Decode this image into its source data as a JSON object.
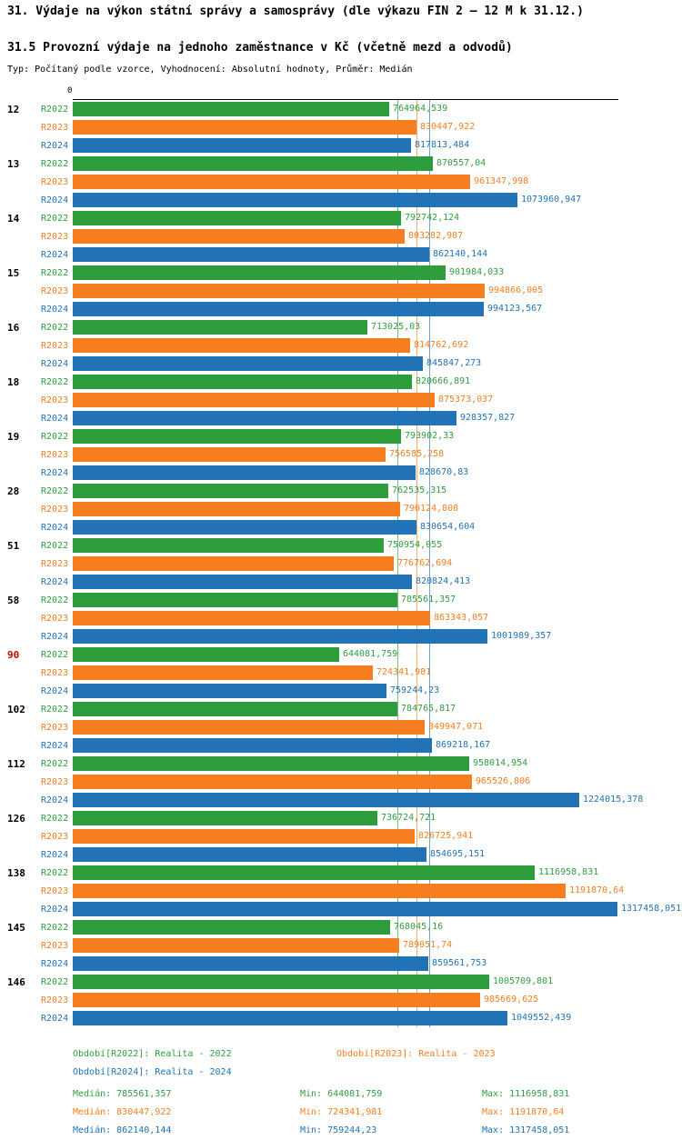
{
  "header": {
    "title": "31. Výdaje na výkon státní správy a samosprávy (dle výkazu FIN 2 – 12 M k 31.12.)",
    "subtitle": "31.5 Provozní výdaje na jednoho zaměstnance v Kč (včetně mezd a odvodů)",
    "meta": "Typ: Počítaný podle vzorce, Vyhodnocení: Absolutní hodnoty, Průměr: Medián"
  },
  "chart_data": {
    "type": "bar",
    "orientation": "horizontal",
    "title": "31.5 Provozní výdaje na jednoho zaměstnance v Kč (včetně mezd a odvodů)",
    "axis_zero_label": "0",
    "xlim": [
      0,
      1400000
    ],
    "grid": false,
    "legend_position": "bottom",
    "series": [
      {
        "name": "R2022",
        "label": "Realita - 2022",
        "color": "#2e9e3d",
        "median": 785561.357,
        "min": 644081.759,
        "max": 1116958.831
      },
      {
        "name": "R2023",
        "label": "Realita - 2023",
        "color": "#f57e20",
        "median": 830447.922,
        "min": 724341.981,
        "max": 1191870.64
      },
      {
        "name": "R2024",
        "label": "Realita - 2024",
        "color": "#2273b5",
        "median": 862140.144,
        "min": 759244.23,
        "max": 1317458.051
      }
    ],
    "groups": [
      {
        "label": "12",
        "highlight": false,
        "values": [
          764964.539,
          830447.922,
          817813.484
        ],
        "displays": [
          "764964,539",
          "830447,922",
          "817813,484"
        ]
      },
      {
        "label": "13",
        "highlight": false,
        "values": [
          870557.04,
          961347.998,
          1073960.947
        ],
        "displays": [
          "870557,04",
          "961347,998",
          "1073960,947"
        ]
      },
      {
        "label": "14",
        "highlight": false,
        "values": [
          792742.124,
          803282.987,
          862140.144
        ],
        "displays": [
          "792742,124",
          "803282,987",
          "862140,144"
        ]
      },
      {
        "label": "15",
        "highlight": false,
        "values": [
          901984.033,
          994866.005,
          994123.567
        ],
        "displays": [
          "901984,033",
          "994866,005",
          "994123,567"
        ]
      },
      {
        "label": "16",
        "highlight": false,
        "values": [
          713025.03,
          814762.692,
          845847.273
        ],
        "displays": [
          "713025,03",
          "814762,692",
          "845847,273"
        ]
      },
      {
        "label": "18",
        "highlight": false,
        "values": [
          820666.891,
          875373.037,
          928357.827
        ],
        "displays": [
          "820666,891",
          "875373,037",
          "928357,827"
        ]
      },
      {
        "label": "19",
        "highlight": false,
        "values": [
          793902.33,
          756585.258,
          828670.83
        ],
        "displays": [
          "793902,33",
          "756585,258",
          "828670,83"
        ]
      },
      {
        "label": "28",
        "highlight": false,
        "values": [
          762535.315,
          790124.808,
          830654.604
        ],
        "displays": [
          "762535,315",
          "790124,808",
          "830654,604"
        ]
      },
      {
        "label": "51",
        "highlight": false,
        "values": [
          750954.055,
          776762.694,
          820824.413
        ],
        "displays": [
          "750954,055",
          "776762,694",
          "820824,413"
        ]
      },
      {
        "label": "58",
        "highlight": false,
        "values": [
          785561.357,
          863343.057,
          1001989.357
        ],
        "displays": [
          "785561,357",
          "863343,057",
          "1001989,357"
        ]
      },
      {
        "label": "90",
        "highlight": true,
        "values": [
          644081.759,
          724341.981,
          759244.23
        ],
        "displays": [
          "644081,759",
          "724341,981",
          "759244,23"
        ]
      },
      {
        "label": "102",
        "highlight": false,
        "values": [
          784765.817,
          849947.071,
          869218.167
        ],
        "displays": [
          "784765,817",
          "849947,071",
          "869218,167"
        ]
      },
      {
        "label": "112",
        "highlight": false,
        "values": [
          958014.954,
          965526.806,
          1224015.378
        ],
        "displays": [
          "958014,954",
          "965526,806",
          "1224015,378"
        ]
      },
      {
        "label": "126",
        "highlight": false,
        "values": [
          736724.721,
          826725.941,
          854695.151
        ],
        "displays": [
          "736724,721",
          "826725,941",
          "854695,151"
        ]
      },
      {
        "label": "138",
        "highlight": false,
        "values": [
          1116958.831,
          1191870.64,
          1317458.051
        ],
        "displays": [
          "1116958,831",
          "1191870,64",
          "1317458,051"
        ]
      },
      {
        "label": "145",
        "highlight": false,
        "values": [
          768045.16,
          789051.74,
          859561.753
        ],
        "displays": [
          "768045,16",
          "789051,74",
          "859561,753"
        ]
      },
      {
        "label": "146",
        "highlight": false,
        "values": [
          1005709.801,
          985669.625,
          1049552.439
        ],
        "displays": [
          "1005709,801",
          "985669,625",
          "1049552,439"
        ]
      }
    ]
  },
  "legend": {
    "r2022": "Období[R2022]: Realita - 2022",
    "r2023": "Období[R2023]: Realita - 2023",
    "r2024": "Období[R2024]: Realita - 2024"
  },
  "stats": [
    {
      "median_text": "Medián: 785561,357",
      "min_text": "Min: 644081,759",
      "max_text": "Max: 1116958,831"
    },
    {
      "median_text": "Medián: 830447,922",
      "min_text": "Min: 724341,981",
      "max_text": "Max: 1191870,64"
    },
    {
      "median_text": "Medián: 862140,144",
      "min_text": "Min: 759244,23",
      "max_text": "Max: 1317458,051"
    }
  ]
}
